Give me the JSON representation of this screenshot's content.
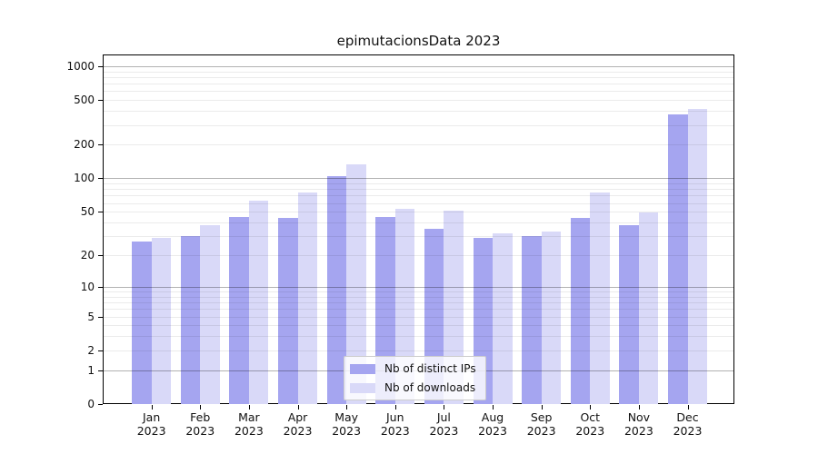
{
  "chart_data": {
    "type": "bar",
    "title": "epimutacionsData 2023",
    "categories": [
      "Jan 2023",
      "Feb 2023",
      "Mar 2023",
      "Apr 2023",
      "May 2023",
      "Jun 2023",
      "Jul 2023",
      "Aug 2023",
      "Sep 2023",
      "Oct 2023",
      "Nov 2023",
      "Dec 2023"
    ],
    "series": [
      {
        "name": "Nb of distinct IPs",
        "color": "#a5a5f0",
        "values": [
          27,
          30,
          45,
          44,
          105,
          45,
          35,
          29,
          30,
          44,
          38,
          375
        ]
      },
      {
        "name": "Nb of downloads",
        "color": "#d9d9f8",
        "values": [
          29,
          38,
          63,
          75,
          133,
          53,
          51,
          32,
          33,
          74,
          49,
          420
        ]
      }
    ],
    "yscale": "log1p",
    "y_ticks": [
      0,
      1,
      2,
      5,
      10,
      20,
      50,
      100,
      200,
      500,
      1000
    ],
    "ylim": [
      0,
      1270
    ],
    "xlabel": "",
    "ylabel": "",
    "grid": true,
    "legend_position": "lower center"
  }
}
